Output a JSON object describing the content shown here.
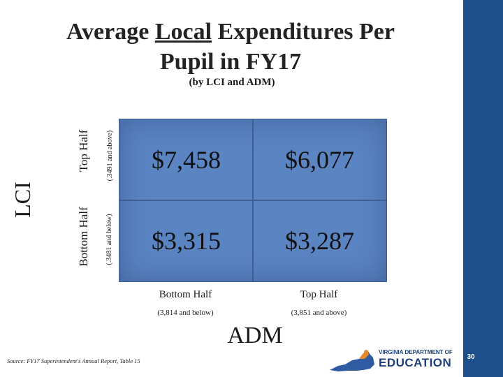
{
  "title": {
    "prefix": "Average ",
    "underlined": "Local",
    "rest": " Expenditures Per Pupil in FY17"
  },
  "subtitle": "(by LCI and ADM)",
  "lci": {
    "axis_label": "LCI",
    "top_label": "Top Half",
    "top_range": "(.3491 and above)",
    "bottom_label": "Bottom Half",
    "bottom_range": "(.3481 and below)"
  },
  "adm": {
    "axis_label": "ADM",
    "bottom_label": "Bottom Half",
    "bottom_range": "(3,814 and below)",
    "top_label": "Top Half",
    "top_range": "(3,851 and above)"
  },
  "cells": {
    "top_left": "$7,458",
    "top_right": "$6,077",
    "bottom_left": "$3,315",
    "bottom_right": "$3,287"
  },
  "source": "Source: FY17 Superintendent's Annual Report, Table 15",
  "logo": {
    "top_text": "VIRGINIA DEPARTMENT OF",
    "main_text": "EDUCATION"
  },
  "page_number": "30",
  "colors": {
    "grid_fill": "#5b84c3",
    "right_bar": "#1f4f8b"
  }
}
